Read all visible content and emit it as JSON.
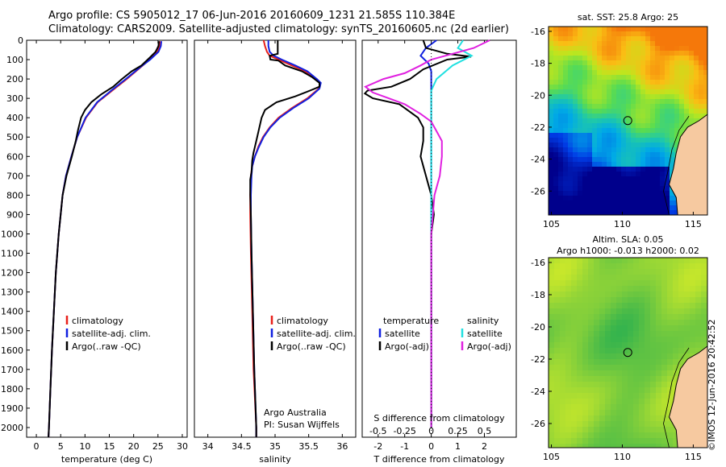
{
  "header": {
    "line1": "Argo profile: CS 5905012_17 06-Jun-2016 20160609_1231 21.585S 110.384E",
    "line2": "Climatology: CARS2009. Satellite-adjusted climatology: synTS_20160605.nc (2d earlier)"
  },
  "credit": "©IMOS 12-Jun-2016 20:42:52",
  "colors": {
    "climatology": "#e8201a",
    "satellite": "#1020e0",
    "argo": "#000000",
    "sal_satellite": "#20e0e0",
    "sal_argo": "#e020e0",
    "land": "#f6c9a0"
  },
  "chart_data": [
    {
      "type": "line",
      "xlabel": "temperature (deg C)",
      "xlim": [
        -2,
        31
      ],
      "ylim": [
        0,
        2050
      ],
      "xticks": [
        0,
        5,
        10,
        15,
        20,
        25,
        30
      ],
      "yticks": [
        0,
        100,
        200,
        300,
        400,
        500,
        600,
        700,
        800,
        900,
        1000,
        1100,
        1200,
        1300,
        1400,
        1500,
        1600,
        1700,
        1800,
        1900,
        2000
      ],
      "legend": [
        "climatology",
        "satellite-adj. clim.",
        "Argo(..raw -QC)"
      ],
      "series": [
        {
          "name": "climatology",
          "depth": [
            5,
            30,
            60,
            100,
            140,
            200,
            260,
            320,
            400,
            500,
            600,
            700,
            800,
            1000,
            1200,
            1400,
            1600,
            1800,
            2000,
            2050
          ],
          "values": [
            25.4,
            25.3,
            24.9,
            23.3,
            21.4,
            18.6,
            15.6,
            12.6,
            10.2,
            8.4,
            7.2,
            6.1,
            5.4,
            4.6,
            4.0,
            3.6,
            3.2,
            2.9,
            2.6,
            2.5
          ]
        },
        {
          "name": "satellite-adj. clim.",
          "depth": [
            5,
            30,
            60,
            100,
            140,
            200,
            260,
            320,
            400,
            500,
            600,
            700,
            800,
            1000,
            1200,
            1400,
            1600,
            1800,
            2000,
            2050
          ],
          "values": [
            25.7,
            25.6,
            25.1,
            23.4,
            21.3,
            18.4,
            15.4,
            12.5,
            10.1,
            8.4,
            7.2,
            6.1,
            5.4,
            4.6,
            4.0,
            3.6,
            3.2,
            2.9,
            2.6,
            2.5
          ]
        },
        {
          "name": "Argo(..raw -QC)",
          "depth": [
            5,
            30,
            60,
            90,
            130,
            160,
            200,
            240,
            280,
            320,
            360,
            400,
            460,
            520,
            600,
            700,
            800,
            1000,
            1200,
            1400,
            1600,
            1800,
            2000,
            2050
          ],
          "values": [
            25.2,
            25.1,
            24.5,
            23.3,
            21.6,
            19.6,
            17.6,
            15.8,
            13.3,
            11.3,
            10.0,
            9.2,
            8.6,
            8.1,
            7.3,
            6.2,
            5.4,
            4.6,
            4.0,
            3.6,
            3.2,
            2.9,
            2.6,
            2.5
          ]
        }
      ]
    },
    {
      "type": "line",
      "xlabel": "salinity",
      "xlim": [
        33.8,
        36.2
      ],
      "ylim": [
        0,
        2050
      ],
      "xticks": [
        34,
        34.5,
        35,
        35.5,
        36
      ],
      "legend": [
        "climatology",
        "satellite-adj. clim.",
        "Argo(..raw -QC)"
      ],
      "annotations": [
        "Argo Australia",
        "PI: Susan Wijffels"
      ],
      "series": [
        {
          "name": "climatology",
          "depth": [
            0,
            30,
            60,
            80,
            100,
            130,
            160,
            200,
            220,
            250,
            300,
            350,
            400,
            450,
            500,
            550,
            600,
            650,
            700,
            800,
            900,
            1100,
            1400,
            1700,
            2000,
            2050
          ],
          "values": [
            34.83,
            34.85,
            34.88,
            34.92,
            35.05,
            35.25,
            35.45,
            35.62,
            35.67,
            35.65,
            35.48,
            35.25,
            35.05,
            34.92,
            34.82,
            34.75,
            34.7,
            34.66,
            34.64,
            34.63,
            34.63,
            34.64,
            34.66,
            34.68,
            34.72,
            34.72
          ]
        },
        {
          "name": "satellite-adj. clim.",
          "depth": [
            0,
            30,
            60,
            80,
            100,
            130,
            160,
            200,
            220,
            250,
            300,
            350,
            400,
            450,
            500,
            550,
            600,
            650,
            700,
            800,
            900,
            1100,
            1400,
            1700,
            2000,
            2050
          ],
          "values": [
            34.9,
            34.9,
            34.92,
            34.98,
            35.1,
            35.3,
            35.48,
            35.62,
            35.68,
            35.66,
            35.5,
            35.27,
            35.07,
            34.93,
            34.83,
            34.76,
            34.7,
            34.66,
            34.65,
            34.64,
            34.64,
            34.65,
            34.67,
            34.69,
            34.72,
            34.72
          ]
        },
        {
          "name": "Argo(..raw -QC)",
          "depth": [
            0,
            70,
            80,
            100,
            105,
            130,
            160,
            190,
            220,
            240,
            260,
            290,
            320,
            360,
            400,
            460,
            520,
            580,
            620,
            680,
            720,
            800,
            900,
            1100,
            1400,
            1700,
            2000,
            2050
          ],
          "values": [
            35.04,
            35.04,
            34.92,
            34.93,
            35.05,
            35.15,
            35.4,
            35.55,
            35.66,
            35.66,
            35.52,
            35.3,
            35.02,
            34.85,
            34.8,
            34.76,
            34.72,
            34.68,
            34.66,
            34.65,
            34.63,
            34.63,
            34.64,
            34.65,
            34.67,
            34.69,
            34.72,
            34.72
          ]
        }
      ]
    },
    {
      "type": "line",
      "xlabel": "T difference from climatology",
      "x2label": "S difference from climatology",
      "xlim": [
        -2.6,
        3.2
      ],
      "ylim": [
        0,
        2050
      ],
      "xticks": [
        -2,
        -1,
        0,
        1,
        2
      ],
      "x2ticks": [
        -0.5,
        -0.25,
        0,
        0.25,
        0.5
      ],
      "legend_left_title": "temperature",
      "legend_right_title": "salinity",
      "legend": [
        "satellite",
        "Argo(-adj)",
        "satellite",
        "Argo(-adj)"
      ],
      "series": [
        {
          "name": "temperature satellite",
          "depth": [
            0,
            40,
            80,
            120,
            160,
            200,
            260,
            350,
            500,
            800,
            1200,
            1600,
            2000
          ],
          "values": [
            0.2,
            -0.2,
            -0.4,
            -0.1,
            0.0,
            0.0,
            0.0,
            0.0,
            0.0,
            0.0,
            0.0,
            0.0,
            0.0
          ]
        },
        {
          "name": "temperature Argo(-adj)",
          "depth": [
            0,
            40,
            70,
            85,
            100,
            150,
            200,
            240,
            260,
            275,
            300,
            330,
            360,
            400,
            450,
            520,
            600,
            700,
            800,
            900,
            1000,
            1200,
            1400,
            1600,
            1800,
            2000
          ],
          "values": [
            -0.3,
            -0.2,
            0.6,
            1.5,
            0.6,
            -0.3,
            -0.8,
            -1.5,
            -2.4,
            -2.5,
            -2.2,
            -1.2,
            -0.9,
            -0.5,
            -0.3,
            -0.3,
            -0.4,
            -0.2,
            0.0,
            0.1,
            0.0,
            0.0,
            0.0,
            0.0,
            0.0,
            0.0
          ]
        },
        {
          "name": "salinity satellite",
          "depth": [
            0,
            40,
            80,
            130,
            200,
            260,
            300,
            400,
            600,
            900,
            1300,
            1700,
            2000
          ],
          "values": [
            0.3,
            0.25,
            0.38,
            0.2,
            0.05,
            0.0,
            0.0,
            0.0,
            0.0,
            0.0,
            0.0,
            0.0,
            0.0
          ]
        },
        {
          "name": "salinity Argo(-adj)",
          "depth": [
            0,
            40,
            70,
            100,
            130,
            170,
            200,
            240,
            270,
            300,
            330,
            380,
            420,
            470,
            520,
            600,
            700,
            800,
            1000,
            1300,
            1700,
            2000
          ],
          "values": [
            0.55,
            0.4,
            0.2,
            0.0,
            -0.1,
            -0.25,
            -0.45,
            -0.62,
            -0.55,
            -0.4,
            -0.25,
            -0.1,
            0.0,
            0.05,
            0.1,
            0.1,
            0.08,
            0.03,
            0.0,
            0.0,
            0.0,
            0.0
          ]
        }
      ]
    },
    {
      "type": "heatmap",
      "title": "sat. SST: 25.8  Argo: 25",
      "xticks": [
        105,
        110,
        115
      ],
      "yticks": [
        -16,
        -18,
        -20,
        -22,
        -24,
        -26
      ],
      "xlim": [
        104.8,
        116
      ],
      "ylim": [
        -27.5,
        -15.7
      ],
      "marker": [
        110.384,
        -21.585
      ]
    },
    {
      "type": "heatmap",
      "title": "Altim. SLA: 0.05",
      "subtitle": "Argo h1000: -0.013  h2000: 0.02",
      "xticks": [
        105,
        110,
        115
      ],
      "yticks": [
        -16,
        -18,
        -20,
        -22,
        -24,
        -26
      ],
      "xlim": [
        104.8,
        116
      ],
      "ylim": [
        -27.5,
        -15.7
      ],
      "marker": [
        110.384,
        -21.585
      ]
    }
  ]
}
